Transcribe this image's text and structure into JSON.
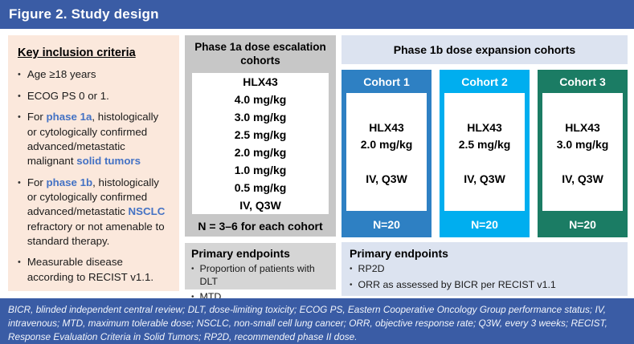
{
  "figure_title": "Figure 2. Study design",
  "colors": {
    "header_bar": "#3A5CA5",
    "footer_bar": "#3A5CA5",
    "accent_blue": "#4472C4",
    "inclusion_bg": "#FBE8DC",
    "phase1a_bg": "#C7C7C7",
    "phase1a_endpoints_bg": "#D5D5D5",
    "phase1b_bg": "#DCE3F0",
    "cohort1_color": "#2E80C3",
    "cohort2_color": "#00AEEF",
    "cohort3_color": "#1B7C64"
  },
  "inclusion": {
    "title": "Key inclusion criteria",
    "bullets": [
      [
        {
          "text": "Age ≥18 years"
        }
      ],
      [
        {
          "text": "ECOG PS 0 or 1."
        }
      ],
      [
        {
          "text": "For "
        },
        {
          "text": "phase 1a",
          "accent": true
        },
        {
          "text": ", histologically or cytologically confirmed advanced/metastatic malignant "
        },
        {
          "text": "solid tumors",
          "accent": true
        }
      ],
      [
        {
          "text": "For "
        },
        {
          "text": "phase 1b",
          "accent": true
        },
        {
          "text": ", histologically or cytologically confirmed advanced/metastatic "
        },
        {
          "text": "NSCLC",
          "accent": true
        },
        {
          "text": " refractory or not amenable to standard therapy."
        }
      ],
      [
        {
          "text": "Measurable disease according to RECIST v1.1."
        }
      ]
    ]
  },
  "phase1a": {
    "header": "Phase 1a dose escalation cohorts",
    "dose_lines": [
      "HLX43",
      "4.0 mg/kg",
      "3.0 mg/kg",
      "2.5 mg/kg",
      "2.0 mg/kg",
      "1.0 mg/kg",
      "0.5 mg/kg",
      "IV, Q3W"
    ],
    "n_label": "N = 3–6 for each cohort",
    "endpoints": {
      "title": "Primary endpoints",
      "bullets": [
        "Proportion of patients with DLT",
        "MTD"
      ]
    }
  },
  "phase1b": {
    "header": "Phase 1b dose expansion cohorts",
    "cohorts": [
      {
        "label": "Cohort 1",
        "drug": "HLX43",
        "dose": "2.0 mg/kg",
        "schedule": "IV, Q3W",
        "n": "N=20",
        "color": "#2E80C3"
      },
      {
        "label": "Cohort 2",
        "drug": "HLX43",
        "dose": "2.5 mg/kg",
        "schedule": "IV, Q3W",
        "n": "N=20",
        "color": "#00AEEF"
      },
      {
        "label": "Cohort 3",
        "drug": "HLX43",
        "dose": "3.0 mg/kg",
        "schedule": "IV, Q3W",
        "n": "N=20",
        "color": "#1B7C64"
      }
    ],
    "endpoints": {
      "title": "Primary endpoints",
      "bullets": [
        "RP2D",
        "ORR as assessed by BICR per RECIST v1.1"
      ]
    }
  },
  "footer": {
    "abbreviations": "BICR, blinded independent central review; DLT, dose-limiting toxicity; ECOG PS, Eastern Cooperative Oncology Group performance status; IV, intravenous; MTD, maximum tolerable dose; NSCLC, non-small cell lung cancer; ORR, objective response rate; Q3W, every 3 weeks; RECIST, Response Evaluation Criteria in Solid Tumors; RP2D, recommended phase II dose."
  }
}
